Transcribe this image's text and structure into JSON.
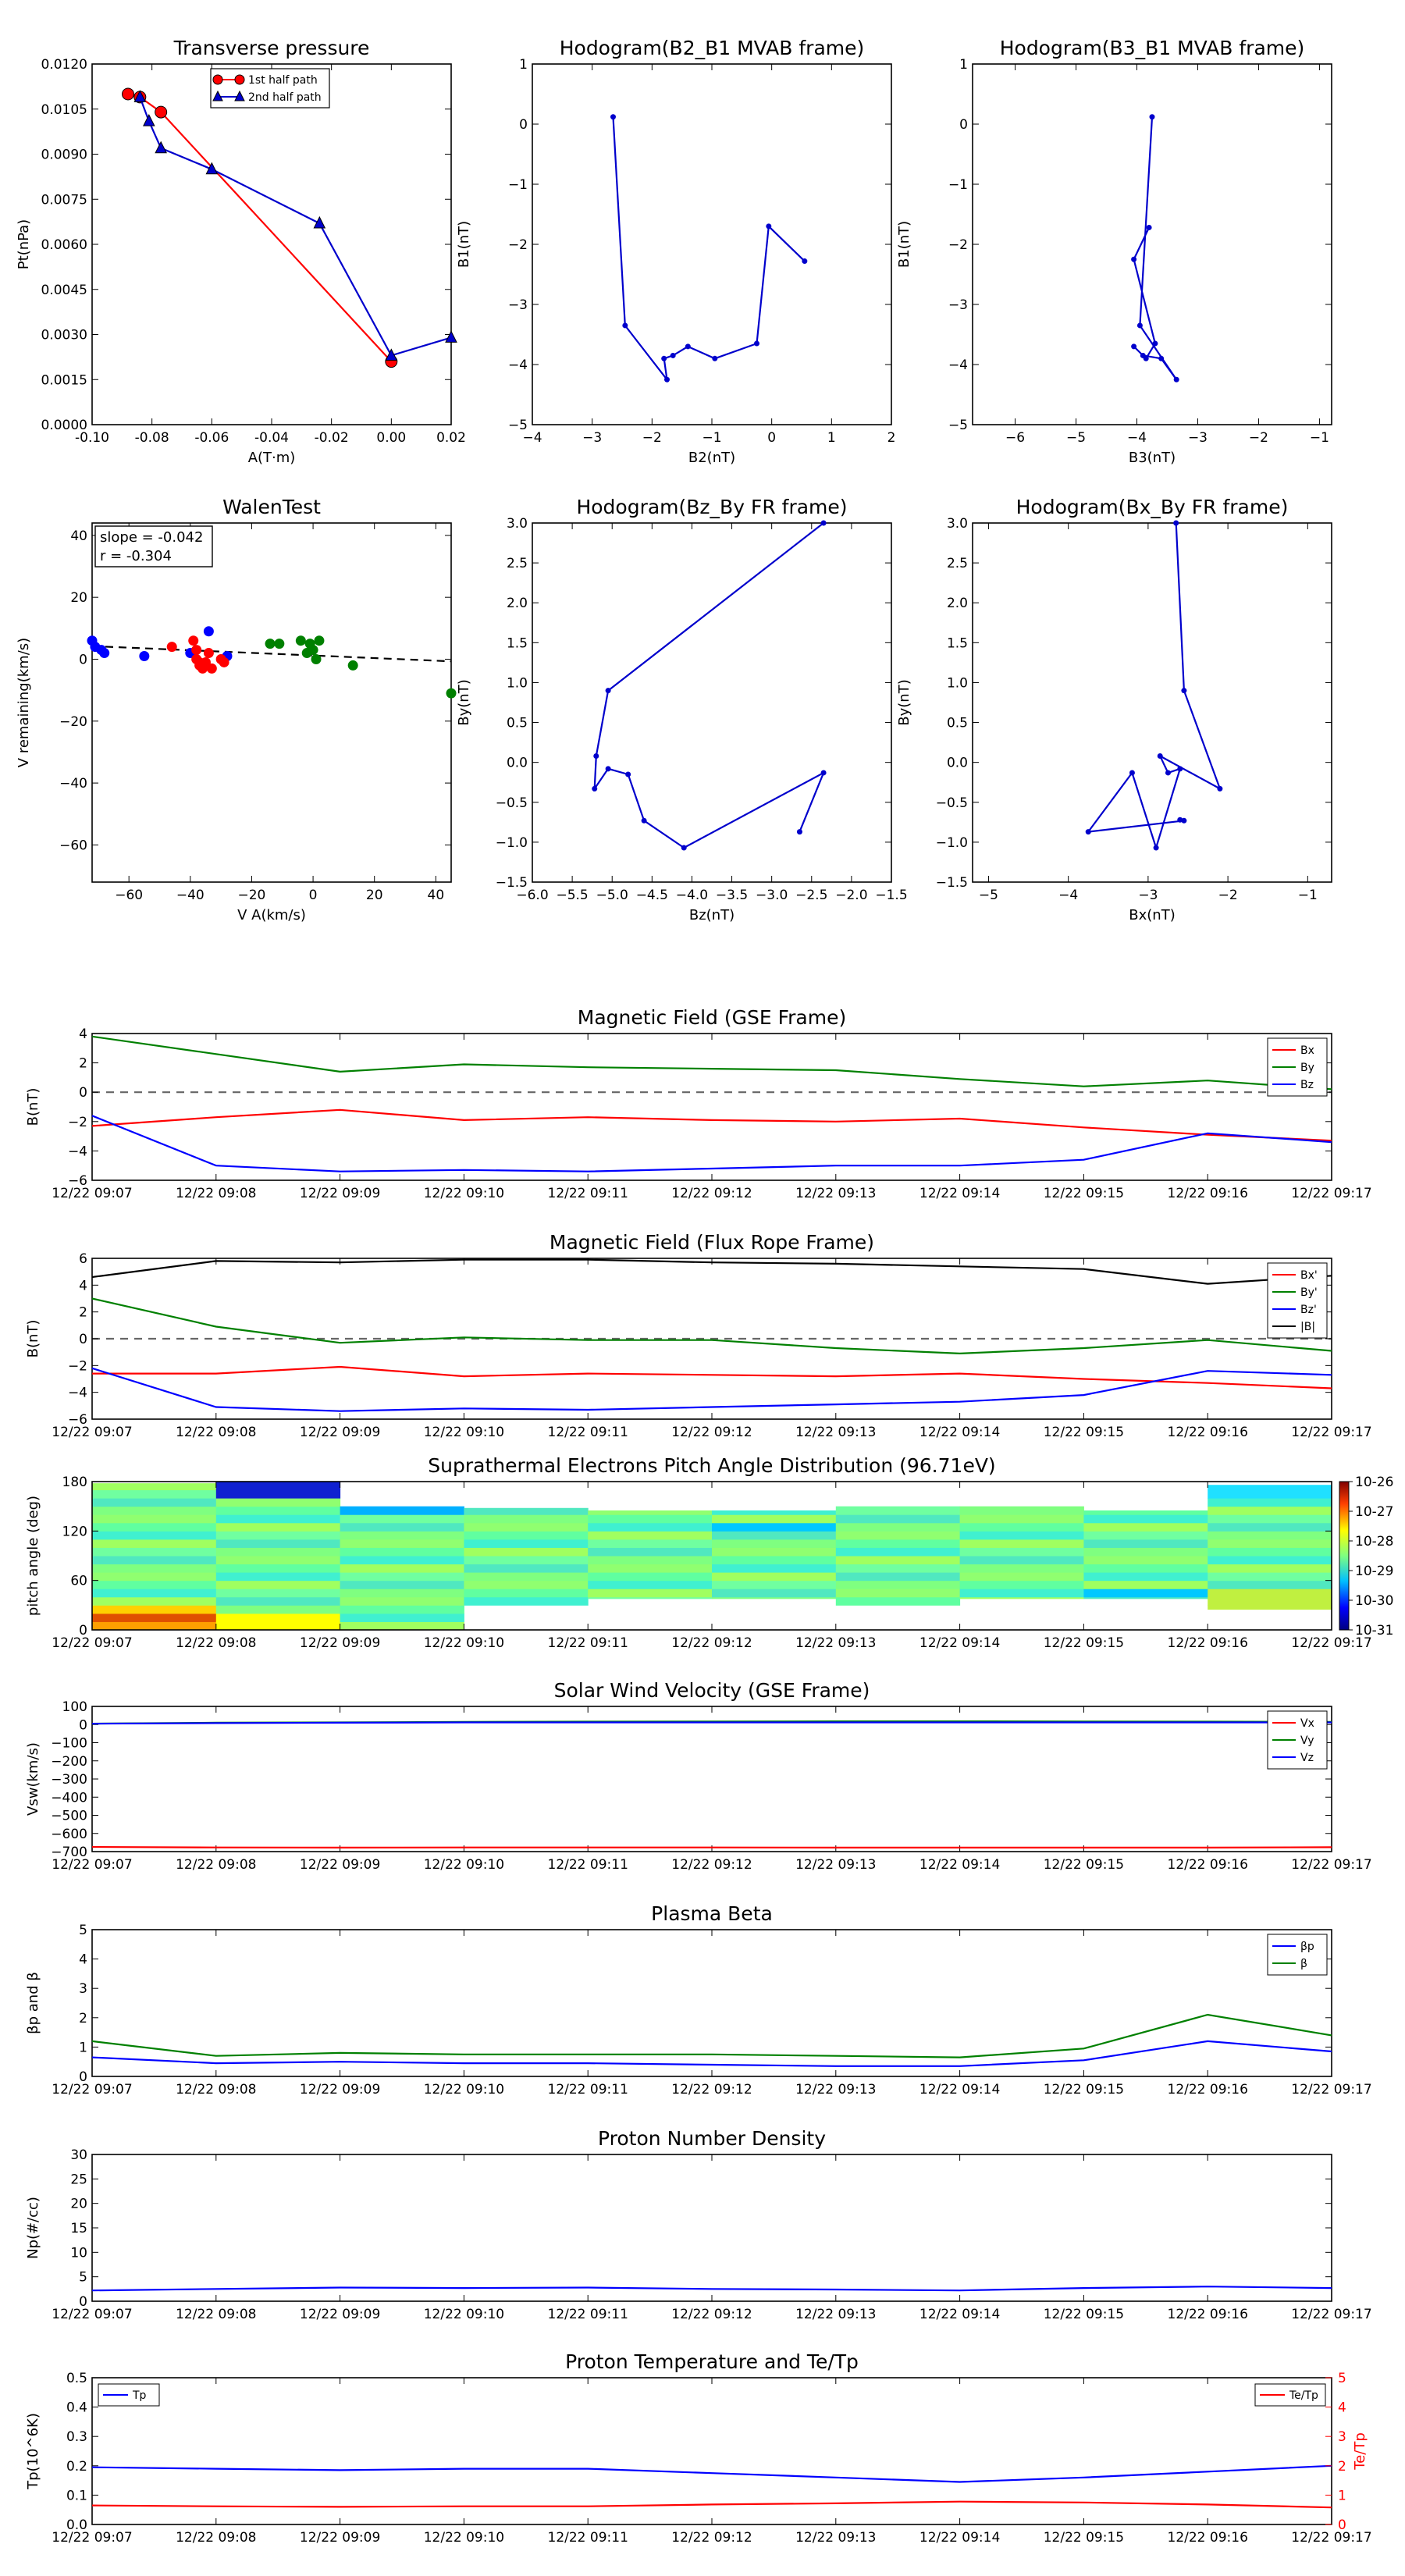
{
  "chart_data": [
    {
      "type": "line",
      "title": "Transverse pressure",
      "xlabel": "A(T·m)",
      "ylabel": "Pt(nPa)",
      "xlim": [
        -0.1,
        0.02
      ],
      "ylim": [
        0,
        0.012
      ],
      "xticks": [
        "-0.10",
        "-0.08",
        "-0.06",
        "-0.04",
        "-0.02",
        "0.00",
        "0.02"
      ],
      "yticks": [
        "0.0000",
        "0.0015",
        "0.0030",
        "0.0045",
        "0.0060",
        "0.0075",
        "0.0090",
        "0.0105",
        "0.0120"
      ],
      "legend": "top-center",
      "series": [
        {
          "name": "1st half path",
          "color": "#ff0000",
          "marker": "circle",
          "x": [
            -0.088,
            -0.084,
            -0.077,
            0.0
          ],
          "y": [
            0.011,
            0.0109,
            0.0104,
            0.0021
          ]
        },
        {
          "name": "2nd half path",
          "color": "#0000cc",
          "marker": "triangle",
          "x": [
            -0.084,
            -0.081,
            -0.077,
            -0.06,
            -0.024,
            0.0,
            0.02
          ],
          "y": [
            0.0109,
            0.0101,
            0.0092,
            0.0085,
            0.0067,
            0.0023,
            0.0029
          ]
        }
      ]
    },
    {
      "type": "line",
      "title": "Hodogram(B2_B1 MVAB frame)",
      "xlabel": "B2(nT)",
      "ylabel": "B1(nT)",
      "xlim": [
        -4,
        2
      ],
      "ylim": [
        -5,
        1
      ],
      "xticks": [
        "−4",
        "−3",
        "−2",
        "−1",
        "0",
        "1",
        "2"
      ],
      "yticks": [
        "−5",
        "−4",
        "−3",
        "−2",
        "−1",
        "0",
        "1"
      ],
      "series": [
        {
          "color": "#0000cc",
          "x": [
            -2.65,
            -2.45,
            -1.75,
            -1.8,
            -1.65,
            -1.4,
            -0.95,
            -0.25,
            -0.05,
            0.55
          ],
          "y": [
            0.12,
            -3.35,
            -4.25,
            -3.9,
            -3.85,
            -3.7,
            -3.9,
            -3.65,
            -1.7,
            -2.28
          ]
        }
      ]
    },
    {
      "type": "line",
      "title": "Hodogram(B3_B1 MVAB frame)",
      "xlabel": "B3(nT)",
      "ylabel": "B1(nT)",
      "xlim": [
        -6.7,
        -0.8
      ],
      "ylim": [
        -5,
        1
      ],
      "xticks": [
        "−6",
        "−5",
        "−4",
        "−3",
        "−2",
        "−1"
      ],
      "yticks": [
        "−5",
        "−4",
        "−3",
        "−2",
        "−1",
        "0",
        "1"
      ],
      "series": [
        {
          "color": "#0000cc",
          "x": [
            -3.75,
            -3.95,
            -3.35,
            -3.6,
            -3.9,
            -4.05,
            -3.85,
            -3.7,
            -4.05,
            -3.8
          ],
          "y": [
            0.12,
            -3.35,
            -4.25,
            -3.9,
            -3.85,
            -3.7,
            -3.9,
            -3.65,
            -2.25,
            -1.72
          ]
        }
      ]
    },
    {
      "type": "scatter",
      "title": "WalenTest",
      "xlabel": "V A(km/s)",
      "ylabel": "V remaining(km/s)",
      "xlim": [
        -72,
        45
      ],
      "ylim": [
        -72,
        44
      ],
      "xticks": [
        "−60",
        "−40",
        "−20",
        "0",
        "20",
        "40"
      ],
      "yticks": [
        "−60",
        "−40",
        "−20",
        "0",
        "20",
        "40"
      ],
      "annotation": [
        "slope = -0.042",
        "r = -0.304"
      ],
      "fit": {
        "slope": -0.042,
        "intercept": 1.2,
        "style": "dashed"
      },
      "series": [
        {
          "color": "#0000ff",
          "x": [
            -72,
            -71,
            -69,
            -68,
            -55,
            -40,
            -34,
            -28
          ],
          "y": [
            6,
            4,
            3,
            2,
            1,
            2,
            9,
            1
          ]
        },
        {
          "color": "#ff0000",
          "x": [
            -46,
            -39,
            -38,
            -37,
            -36,
            -35,
            -34,
            -38,
            -37,
            -33,
            -30,
            -29
          ],
          "y": [
            4,
            6,
            0,
            -2,
            -3,
            -1,
            2,
            3,
            -1,
            -3,
            0,
            -1
          ]
        },
        {
          "color": "#008000",
          "x": [
            -14,
            -11,
            -4,
            -1,
            0,
            1,
            2,
            -2,
            13,
            45
          ],
          "y": [
            5,
            5,
            6,
            5,
            3,
            0,
            6,
            2,
            -2,
            -11
          ]
        }
      ]
    },
    {
      "type": "line",
      "title": "Hodogram(Bz_By FR frame)",
      "xlabel": "Bz(nT)",
      "ylabel": "By(nT)",
      "xlim": [
        -6,
        -1.5
      ],
      "ylim": [
        -1.5,
        3
      ],
      "xticks": [
        "−6.0",
        "−5.5",
        "−5.0",
        "−4.5",
        "−4.0",
        "−3.5",
        "−3.0",
        "−2.5",
        "−2.0",
        "−1.5"
      ],
      "yticks": [
        "−1.5",
        "−1.0",
        "−0.5",
        "0.0",
        "0.5",
        "1.0",
        "1.5",
        "2.0",
        "2.5",
        "3.0"
      ],
      "series": [
        {
          "color": "#0000cc",
          "x": [
            -2.35,
            -5.05,
            -5.2,
            -5.22,
            -5.05,
            -4.8,
            -4.6,
            -4.1,
            -2.35,
            -2.65
          ],
          "y": [
            3.0,
            0.9,
            0.08,
            -0.33,
            -0.08,
            -0.15,
            -0.73,
            -1.07,
            -0.13,
            -0.87
          ]
        }
      ]
    },
    {
      "type": "line",
      "title": "Hodogram(Bx_By FR frame)",
      "xlabel": "Bx(nT)",
      "ylabel": "By(nT)",
      "xlim": [
        -5.2,
        -0.7
      ],
      "ylim": [
        -1.5,
        3
      ],
      "xticks": [
        "−5",
        "−4",
        "−3",
        "−2",
        "−1"
      ],
      "yticks": [
        "−1.5",
        "−1.0",
        "−0.5",
        "0.0",
        "0.5",
        "1.0",
        "1.5",
        "2.0",
        "2.5",
        "3.0"
      ],
      "series": [
        {
          "color": "#0000cc",
          "x": [
            -2.65,
            -2.55,
            -2.1,
            -2.85,
            -2.75,
            -2.6,
            -2.9,
            -3.2,
            -3.75,
            -2.55,
            -2.6
          ],
          "y": [
            3.0,
            0.9,
            -0.33,
            0.08,
            -0.13,
            -0.08,
            -1.07,
            -0.13,
            -0.87,
            -0.73,
            -0.72
          ]
        }
      ]
    },
    {
      "type": "line",
      "title": "Magnetic Field (GSE Frame)",
      "ylabel": "B(nT)",
      "ylim": [
        -6,
        4
      ],
      "yticks": [
        "−6",
        "−4",
        "−2",
        "0",
        "2",
        "4"
      ],
      "x": [
        "12/22 09:07",
        "12/22 09:08",
        "12/22 09:09",
        "12/22 09:10",
        "12/22 09:11",
        "12/22 09:12",
        "12/22 09:13",
        "12/22 09:14",
        "12/22 09:15",
        "12/22 09:16",
        "12/22 09:17"
      ],
      "legend": "top-right",
      "zero_line": true,
      "series": [
        {
          "name": "Bx",
          "color": "#ff0000",
          "values": [
            -2.3,
            -1.7,
            -1.2,
            -1.9,
            -1.7,
            -1.9,
            -2.0,
            -1.8,
            -2.4,
            -2.9,
            -3.3
          ]
        },
        {
          "name": "By",
          "color": "#008000",
          "values": [
            3.8,
            2.6,
            1.4,
            1.9,
            1.7,
            1.6,
            1.5,
            0.9,
            0.4,
            0.8,
            0.2
          ]
        },
        {
          "name": "Bz",
          "color": "#0000ff",
          "values": [
            -1.6,
            -5.0,
            -5.4,
            -5.3,
            -5.4,
            -5.2,
            -5.0,
            -5.0,
            -4.6,
            -2.8,
            -3.4
          ]
        }
      ]
    },
    {
      "type": "line",
      "title": "Magnetic Field (Flux Rope Frame)",
      "ylabel": "B(nT)",
      "ylim": [
        -6,
        6
      ],
      "yticks": [
        "−6",
        "−4",
        "−2",
        "0",
        "2",
        "4",
        "6"
      ],
      "x": [
        "12/22 09:07",
        "12/22 09:08",
        "12/22 09:09",
        "12/22 09:10",
        "12/22 09:11",
        "12/22 09:12",
        "12/22 09:13",
        "12/22 09:14",
        "12/22 09:15",
        "12/22 09:16",
        "12/22 09:17"
      ],
      "legend": "top-right",
      "zero_line": true,
      "series": [
        {
          "name": "Bx'",
          "color": "#ff0000",
          "values": [
            -2.6,
            -2.6,
            -2.1,
            -2.8,
            -2.6,
            -2.7,
            -2.8,
            -2.6,
            -3.0,
            -3.3,
            -3.7
          ]
        },
        {
          "name": "By'",
          "color": "#008000",
          "values": [
            3.0,
            0.9,
            -0.3,
            0.1,
            -0.1,
            -0.1,
            -0.7,
            -1.1,
            -0.7,
            -0.1,
            -0.9
          ]
        },
        {
          "name": "Bz'",
          "color": "#0000ff",
          "values": [
            -2.2,
            -5.1,
            -5.4,
            -5.2,
            -5.3,
            -5.1,
            -4.9,
            -4.7,
            -4.2,
            -2.4,
            -2.7
          ]
        },
        {
          "name": "|B|",
          "color": "#000000",
          "values": [
            4.6,
            5.8,
            5.7,
            5.9,
            5.9,
            5.7,
            5.6,
            5.4,
            5.2,
            4.1,
            4.7
          ]
        }
      ]
    },
    {
      "type": "heatmap",
      "title": "Suprathermal Electrons Pitch Angle Distribution (96.71eV)",
      "ylabel": "pitch angle (deg)",
      "ylim": [
        0,
        180
      ],
      "yticks": [
        "0",
        "60",
        "120",
        "180"
      ],
      "x": [
        "12/22 09:07",
        "12/22 09:08",
        "12/22 09:09",
        "12/22 09:10",
        "12/22 09:11",
        "12/22 09:12",
        "12/22 09:13",
        "12/22 09:14",
        "12/22 09:15",
        "12/22 09:16",
        "12/22 09:17"
      ],
      "colorbar_ticks": [
        "10-26",
        "10-27",
        "10-28",
        "10-29",
        "10-30",
        "10-31"
      ],
      "column_ranges_deg": [
        [
          0,
          178
        ],
        [
          0,
          180
        ],
        [
          0,
          150
        ],
        [
          30,
          148
        ],
        [
          38,
          145
        ],
        [
          38,
          145
        ],
        [
          30,
          150
        ],
        [
          38,
          150
        ],
        [
          38,
          145
        ],
        [
          25,
          176
        ]
      ]
    },
    {
      "type": "line",
      "title": "Solar Wind Velocity (GSE Frame)",
      "ylabel": "Vsw(km/s)",
      "ylim": [
        -700,
        100
      ],
      "yticks": [
        "−700",
        "−600",
        "−500",
        "−400",
        "−300",
        "−200",
        "−100",
        "0",
        "100"
      ],
      "x": [
        "12/22 09:07",
        "12/22 09:08",
        "12/22 09:09",
        "12/22 09:10",
        "12/22 09:11",
        "12/22 09:12",
        "12/22 09:13",
        "12/22 09:14",
        "12/22 09:15",
        "12/22 09:16",
        "12/22 09:17"
      ],
      "legend": "top-right",
      "series": [
        {
          "name": "Vx",
          "color": "#ff0000",
          "values": [
            -674,
            -677,
            -678,
            -677,
            -677,
            -677,
            -678,
            -678,
            -678,
            -678,
            -676
          ]
        },
        {
          "name": "Vy",
          "color": "#008000",
          "values": [
            5,
            10,
            12,
            15,
            16,
            17,
            18,
            18,
            17,
            16,
            15
          ]
        },
        {
          "name": "Vz",
          "color": "#0000ff",
          "values": [
            5,
            8,
            10,
            12,
            12,
            12,
            12,
            12,
            12,
            12,
            12
          ]
        }
      ]
    },
    {
      "type": "line",
      "title": "Plasma Beta",
      "ylabel": "βp and β",
      "ylim": [
        0,
        5
      ],
      "yticks": [
        "0",
        "1",
        "2",
        "3",
        "4",
        "5"
      ],
      "x": [
        "12/22 09:07",
        "12/22 09:08",
        "12/22 09:09",
        "12/22 09:10",
        "12/22 09:11",
        "12/22 09:12",
        "12/22 09:13",
        "12/22 09:14",
        "12/22 09:15",
        "12/22 09:16",
        "12/22 09:17"
      ],
      "legend": "top-right",
      "series": [
        {
          "name": "βp",
          "color": "#0000ff",
          "values": [
            0.65,
            0.45,
            0.5,
            0.45,
            0.45,
            0.4,
            0.35,
            0.35,
            0.55,
            1.2,
            0.85
          ]
        },
        {
          "name": "β",
          "color": "#008000",
          "values": [
            1.2,
            0.7,
            0.8,
            0.75,
            0.75,
            0.75,
            0.7,
            0.65,
            0.95,
            2.1,
            1.4
          ]
        }
      ]
    },
    {
      "type": "line",
      "title": "Proton Number Density",
      "ylabel": "Np(#/cc)",
      "ylim": [
        0,
        30
      ],
      "yticks": [
        "0",
        "5",
        "10",
        "15",
        "20",
        "25",
        "30"
      ],
      "x": [
        "12/22 09:07",
        "12/22 09:08",
        "12/22 09:09",
        "12/22 09:10",
        "12/22 09:11",
        "12/22 09:12",
        "12/22 09:13",
        "12/22 09:14",
        "12/22 09:15",
        "12/22 09:16",
        "12/22 09:17"
      ],
      "series": [
        {
          "color": "#0000ff",
          "values": [
            2.2,
            2.5,
            2.8,
            2.7,
            2.8,
            2.5,
            2.4,
            2.2,
            2.7,
            3.0,
            2.7
          ]
        }
      ]
    },
    {
      "type": "line",
      "title": "Proton Temperature and Te/Tp",
      "ylabel": "Tp(10^6K)",
      "ylabel_right": "Te/Tp",
      "ylim": [
        0,
        0.5
      ],
      "ylim_right": [
        0,
        5
      ],
      "yticks": [
        "0.0",
        "0.1",
        "0.2",
        "0.3",
        "0.4",
        "0.5"
      ],
      "yticks_right": [
        "0",
        "1",
        "2",
        "3",
        "4",
        "5"
      ],
      "x": [
        "12/22 09:07",
        "12/22 09:08",
        "12/22 09:09",
        "12/22 09:10",
        "12/22 09:11",
        "12/22 09:12",
        "12/22 09:13",
        "12/22 09:14",
        "12/22 09:15",
        "12/22 09:16",
        "12/22 09:17"
      ],
      "series": [
        {
          "name": "Tp",
          "axis": "left",
          "color": "#0000ff",
          "values": [
            0.195,
            0.19,
            0.185,
            0.19,
            0.19,
            0.175,
            0.16,
            0.145,
            0.16,
            0.18,
            0.2
          ]
        },
        {
          "name": "Te/Tp",
          "axis": "right",
          "color": "#ff0000",
          "values": [
            0.65,
            0.62,
            0.6,
            0.62,
            0.62,
            0.68,
            0.72,
            0.78,
            0.75,
            0.68,
            0.58
          ]
        }
      ]
    }
  ]
}
